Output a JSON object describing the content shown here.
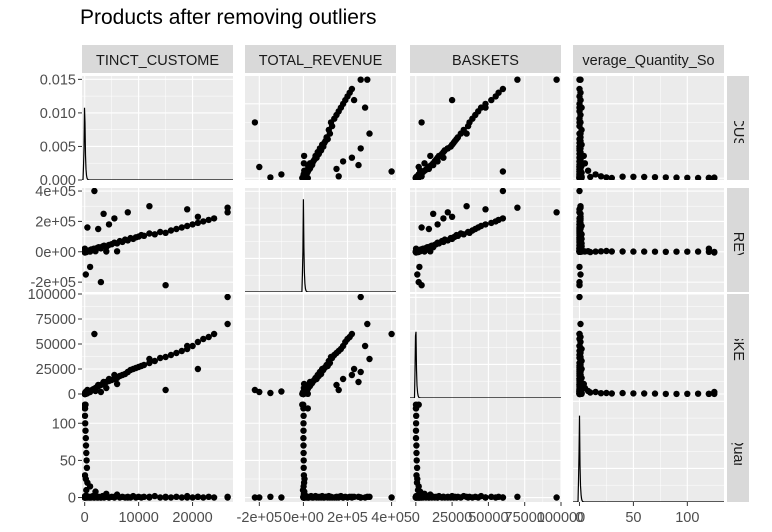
{
  "chart_data": {
    "type": "scatter",
    "title": "Products after removing outliers",
    "variables": [
      {
        "strip": "TINCT_CUSTOME",
        "side_strip": "CT_CUSTO",
        "range": [
          -500,
          27500
        ],
        "ticks": [
          {
            "v": 0,
            "l": "0"
          },
          {
            "v": 10000,
            "l": "10000"
          },
          {
            "v": 20000,
            "l": "20000"
          }
        ]
      },
      {
        "strip": "TOTAL_REVENUE",
        "side_strip": "TAL_REVEN",
        "range": [
          -265000,
          420000
        ],
        "ticks": [
          {
            "v": -200000,
            "l": "-2e+05"
          },
          {
            "v": 0,
            "l": "0e+00"
          },
          {
            "v": 200000,
            "l": "2e+05"
          },
          {
            "v": 400000,
            "l": "4e+05"
          }
        ]
      },
      {
        "strip": "BASKETS",
        "side_strip": "BASKETS",
        "range": [
          -4000,
          100000
        ],
        "ticks": [
          {
            "v": 0,
            "l": "0"
          },
          {
            "v": 25000,
            "l": "25000"
          },
          {
            "v": 50000,
            "l": "50000"
          },
          {
            "v": 75000,
            "l": "75000"
          },
          {
            "v": 100000,
            "l": "100000"
          }
        ]
      },
      {
        "strip": "verage_Quantity_So",
        "side_strip": "ge_Quantity",
        "range": [
          -6,
          134
        ],
        "ticks": [
          {
            "v": 0,
            "l": "0"
          },
          {
            "v": 50,
            "l": "50"
          },
          {
            "v": 100,
            "l": "100"
          }
        ]
      }
    ],
    "density_range": [
      0,
      0.0155
    ],
    "density_ticks": [
      {
        "v": 0,
        "l": "0.000"
      },
      {
        "v": 0.005,
        "l": "0.005"
      },
      {
        "v": 0.01,
        "l": "0.010"
      },
      {
        "v": 0.015,
        "l": "0.015"
      }
    ],
    "points": [
      [
        0,
        0,
        0,
        0
      ],
      [
        10,
        100,
        20,
        0
      ],
      [
        20,
        300,
        50,
        1
      ],
      [
        30,
        200,
        80,
        0
      ],
      [
        50,
        500,
        120,
        1
      ],
      [
        80,
        800,
        200,
        2
      ],
      [
        120,
        1200,
        300,
        0
      ],
      [
        200,
        2000,
        500,
        1
      ],
      [
        300,
        3000,
        800,
        0
      ],
      [
        400,
        4000,
        1200,
        2
      ],
      [
        500,
        6000,
        1500,
        0
      ],
      [
        600,
        5000,
        2000,
        1
      ],
      [
        800,
        8000,
        2500,
        0
      ],
      [
        1000,
        10000,
        3000,
        1
      ],
      [
        1200,
        15000,
        3500,
        0
      ],
      [
        1500,
        12000,
        4500,
        2
      ],
      [
        1700,
        20000,
        5000,
        0
      ],
      [
        2000,
        18000,
        6000,
        1
      ],
      [
        2300,
        25000,
        7000,
        0
      ],
      [
        2600,
        30000,
        8000,
        1
      ],
      [
        3000,
        22000,
        9000,
        0
      ],
      [
        3300,
        35000,
        10000,
        2
      ],
      [
        3600,
        40000,
        11000,
        0
      ],
      [
        4000,
        30000,
        12000,
        1
      ],
      [
        4500,
        45000,
        13000,
        0
      ],
      [
        5000,
        50000,
        14000,
        1
      ],
      [
        5500,
        60000,
        15000,
        0
      ],
      [
        6000,
        55000,
        16000,
        2
      ],
      [
        6500,
        70000,
        18000,
        0
      ],
      [
        7000,
        65000,
        19000,
        1
      ],
      [
        7500,
        80000,
        20000,
        0
      ],
      [
        8000,
        75000,
        22000,
        1
      ],
      [
        8500,
        90000,
        24000,
        0
      ],
      [
        9000,
        85000,
        25000,
        2
      ],
      [
        9500,
        95000,
        26000,
        0
      ],
      [
        10000,
        100000,
        27000,
        1
      ],
      [
        10500,
        110000,
        28000,
        0
      ],
      [
        11000,
        105000,
        29000,
        1
      ],
      [
        12000,
        120000,
        31000,
        0
      ],
      [
        13000,
        115000,
        33000,
        2
      ],
      [
        14000,
        130000,
        36000,
        0
      ],
      [
        15000,
        125000,
        37000,
        1
      ],
      [
        16000,
        140000,
        39000,
        0
      ],
      [
        17000,
        150000,
        41000,
        1
      ],
      [
        18000,
        160000,
        43000,
        0
      ],
      [
        19000,
        170000,
        45000,
        2
      ],
      [
        20000,
        180000,
        48000,
        0
      ],
      [
        21000,
        190000,
        52000,
        1
      ],
      [
        22000,
        200000,
        55000,
        0
      ],
      [
        23000,
        210000,
        57000,
        1
      ],
      [
        24000,
        220000,
        60000,
        0
      ],
      [
        26500,
        290000,
        70000,
        1
      ],
      [
        26500,
        260000,
        97000,
        0
      ],
      [
        2500,
        150000,
        9000,
        0
      ],
      [
        3500,
        250000,
        12000,
        1
      ],
      [
        4500,
        180000,
        15000,
        0
      ],
      [
        5500,
        220000,
        19000,
        1
      ],
      [
        3000,
        -200000,
        2000,
        0
      ],
      [
        200,
        -150000,
        1000,
        1
      ],
      [
        1000,
        -100000,
        2500,
        0
      ],
      [
        1800,
        400000,
        60000,
        0
      ],
      [
        12000,
        300000,
        35000,
        1
      ],
      [
        19000,
        280000,
        48000,
        0
      ],
      [
        21000,
        230000,
        25000,
        1
      ],
      [
        15000,
        -220000,
        4000,
        0
      ],
      [
        500,
        160000,
        4000,
        1
      ],
      [
        8000,
        260000,
        22000,
        0
      ],
      [
        30,
        -5000,
        100,
        125
      ],
      [
        10,
        20000,
        200,
        120
      ],
      [
        50,
        2000,
        500,
        30
      ],
      [
        200,
        5000,
        1000,
        25
      ],
      [
        500,
        3000,
        800,
        20
      ],
      [
        1000,
        1000,
        2000,
        15
      ],
      [
        300,
        -2000,
        1500,
        10
      ],
      [
        2000,
        4000,
        3000,
        8
      ],
      [
        4000,
        2000,
        6000,
        5
      ],
      [
        6000,
        3000,
        10000,
        4
      ],
      [
        50,
        1000,
        300,
        110
      ],
      [
        100,
        500,
        200,
        100
      ],
      [
        150,
        200,
        150,
        90
      ],
      [
        200,
        100,
        100,
        80
      ],
      [
        250,
        300,
        400,
        70
      ],
      [
        300,
        800,
        500,
        60
      ],
      [
        350,
        1200,
        600,
        50
      ],
      [
        400,
        1500,
        900,
        40
      ],
      [
        150,
        -1000,
        2000,
        125
      ],
      [
        80,
        100,
        50,
        120
      ]
    ]
  }
}
